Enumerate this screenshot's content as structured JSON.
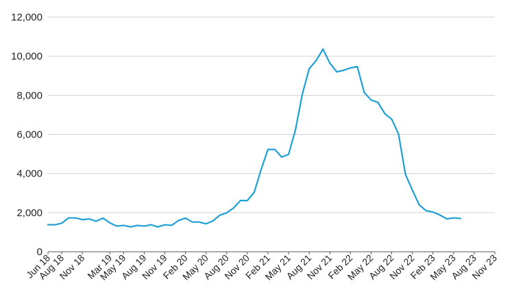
{
  "chart_data": {
    "type": "line",
    "title": "",
    "xlabel": "",
    "ylabel": "",
    "ylim": [
      0,
      12000
    ],
    "y_ticks": [
      "0",
      "2,000",
      "4,000",
      "6,000",
      "8,000",
      "10,000",
      "12,000"
    ],
    "x_tick_labels": [
      "Jun 18",
      "Aug 18",
      "Nov 18",
      "Mar 19",
      "May 19",
      "Aug 19",
      "Nov 19",
      "Feb 20",
      "May 20",
      "Aug 20",
      "Nov 20",
      "Feb 21",
      "May 21",
      "Aug 21",
      "Nov 21",
      "Feb 22",
      "May 22",
      "Aug 22",
      "Nov 22",
      "Feb 23",
      "May 23",
      "Aug 23",
      "Nov 23"
    ],
    "grid": true,
    "legend": "none",
    "colors": {
      "line": "#1b9fd6",
      "grid": "#d0d0d0"
    },
    "series": [
      {
        "x": [
          "2018-06",
          "2018-07",
          "2018-08",
          "2018-09",
          "2018-10",
          "2018-11",
          "2018-12",
          "2019-01",
          "2019-02",
          "2019-03",
          "2019-04",
          "2019-05",
          "2019-06",
          "2019-07",
          "2019-08",
          "2019-09",
          "2019-10",
          "2019-11",
          "2019-12",
          "2020-01",
          "2020-02",
          "2020-03",
          "2020-04",
          "2020-05",
          "2020-06",
          "2020-07",
          "2020-08",
          "2020-09",
          "2020-10",
          "2020-11",
          "2020-12",
          "2021-01",
          "2021-02",
          "2021-03",
          "2021-04",
          "2021-05",
          "2021-06",
          "2021-07",
          "2021-08",
          "2021-09",
          "2021-10",
          "2021-11",
          "2021-12",
          "2022-01",
          "2022-02",
          "2022-03",
          "2022-04",
          "2022-05",
          "2022-06",
          "2022-07",
          "2022-08",
          "2022-09",
          "2022-10",
          "2022-11",
          "2022-12",
          "2023-01",
          "2023-02",
          "2023-03",
          "2023-04",
          "2023-05",
          "2023-06"
        ],
        "values": [
          1380,
          1380,
          1460,
          1730,
          1730,
          1640,
          1680,
          1560,
          1720,
          1480,
          1310,
          1350,
          1270,
          1350,
          1310,
          1380,
          1270,
          1380,
          1350,
          1600,
          1720,
          1520,
          1520,
          1430,
          1580,
          1870,
          1990,
          2240,
          2620,
          2620,
          3040,
          4200,
          5230,
          5230,
          4840,
          4980,
          6230,
          8060,
          9360,
          9770,
          10360,
          9650,
          9200,
          9280,
          9400,
          9470,
          8150,
          7760,
          7640,
          7060,
          6780,
          6010,
          3960,
          3160,
          2400,
          2100,
          2030,
          1880,
          1680,
          1730,
          1700
        ]
      }
    ]
  }
}
